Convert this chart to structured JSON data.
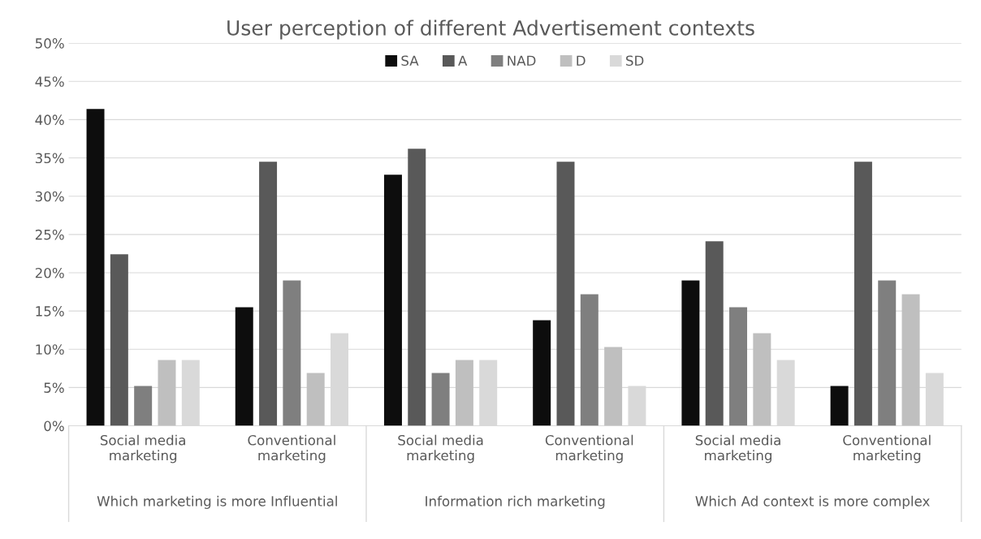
{
  "chart_data": {
    "type": "bar",
    "title": "User perception of different Advertisement contexts",
    "categories": [
      "Social media\nmarketing",
      "Conventional\nmarketing",
      "Social media\nmarketing",
      "Conventional\nmarketing",
      "Social media\nmarketing",
      "Conventional\nmarketing"
    ],
    "annotations": [
      "Which marketing is more Influential",
      "Information rich marketing",
      "Which Ad context is more complex"
    ],
    "series": [
      {
        "name": "SA",
        "color": "#0d0d0d",
        "values": [
          41.4,
          15.5,
          32.8,
          13.8,
          19.0,
          5.2
        ]
      },
      {
        "name": "A",
        "color": "#595959",
        "values": [
          22.4,
          34.5,
          36.2,
          34.5,
          24.1,
          34.5
        ]
      },
      {
        "name": "NAD",
        "color": "#7f7f7f",
        "values": [
          5.2,
          19.0,
          6.9,
          17.2,
          15.5,
          19.0
        ]
      },
      {
        "name": "D",
        "color": "#bfbfbf",
        "values": [
          8.6,
          6.9,
          8.6,
          10.3,
          12.1,
          17.2
        ]
      },
      {
        "name": "SD",
        "color": "#d9d9d9",
        "values": [
          8.6,
          12.1,
          8.6,
          5.2,
          8.6,
          6.9
        ]
      }
    ],
    "ylim": [
      0,
      50
    ],
    "yticks": [
      {
        "value": 0,
        "label": "0%"
      },
      {
        "value": 5,
        "label": "5%"
      },
      {
        "value": 10,
        "label": "10%"
      },
      {
        "value": 15,
        "label": "15%"
      },
      {
        "value": 20,
        "label": "20%"
      },
      {
        "value": 25,
        "label": "25%"
      },
      {
        "value": 30,
        "label": "30%"
      },
      {
        "value": 35,
        "label": "35%"
      },
      {
        "value": 40,
        "label": "40%"
      },
      {
        "value": 45,
        "label": "45%"
      },
      {
        "value": 50,
        "label": "50%"
      }
    ],
    "grid": "y",
    "legend": "top"
  }
}
